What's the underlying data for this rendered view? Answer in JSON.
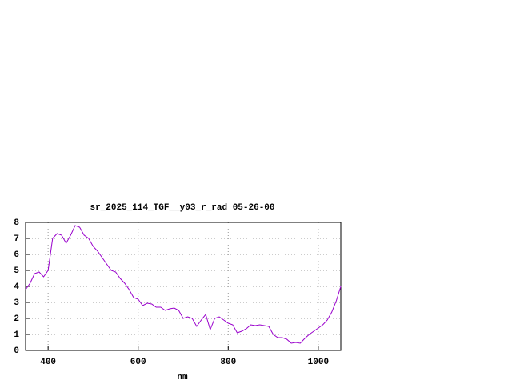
{
  "chart_data": {
    "type": "line",
    "title": "sr_2025_114_TGF__y03_r_rad 05-26-00",
    "x_label": "nm",
    "x": [
      350,
      360,
      370,
      380,
      390,
      400,
      405,
      410,
      420,
      430,
      440,
      450,
      460,
      470,
      480,
      490,
      500,
      510,
      520,
      530,
      540,
      550,
      560,
      570,
      580,
      590,
      600,
      610,
      620,
      630,
      640,
      650,
      660,
      670,
      680,
      690,
      700,
      710,
      720,
      730,
      740,
      750,
      760,
      770,
      780,
      790,
      800,
      810,
      820,
      830,
      840,
      850,
      860,
      870,
      880,
      890,
      900,
      910,
      920,
      930,
      940,
      950,
      960,
      970,
      980,
      990,
      1000,
      1010,
      1020,
      1030,
      1040,
      1050
    ],
    "values": [
      3.8,
      4.2,
      4.8,
      4.9,
      4.6,
      5.0,
      6.0,
      7.0,
      7.3,
      7.2,
      6.7,
      7.2,
      7.8,
      7.7,
      7.2,
      7.0,
      6.5,
      6.2,
      5.8,
      5.4,
      5.0,
      4.9,
      4.5,
      4.2,
      3.8,
      3.3,
      3.2,
      2.8,
      2.95,
      2.9,
      2.7,
      2.7,
      2.5,
      2.6,
      2.65,
      2.5,
      2.0,
      2.1,
      2.0,
      1.5,
      1.9,
      2.25,
      1.3,
      2.0,
      2.1,
      1.9,
      1.7,
      1.6,
      1.1,
      1.2,
      1.35,
      1.6,
      1.55,
      1.6,
      1.55,
      1.5,
      1.0,
      0.8,
      0.8,
      0.7,
      0.45,
      0.5,
      0.45,
      0.75,
      1.0,
      1.2,
      1.4,
      1.6,
      1.9,
      2.4,
      3.1,
      4.0
    ],
    "color": "#9900cc",
    "xlim": [
      350,
      1050
    ],
    "xticks": [
      400,
      600,
      800,
      1000
    ],
    "ylim": [
      0,
      8
    ],
    "yticks": [
      0,
      1,
      2,
      3,
      4,
      5,
      6,
      7,
      8
    ],
    "grid": true
  }
}
